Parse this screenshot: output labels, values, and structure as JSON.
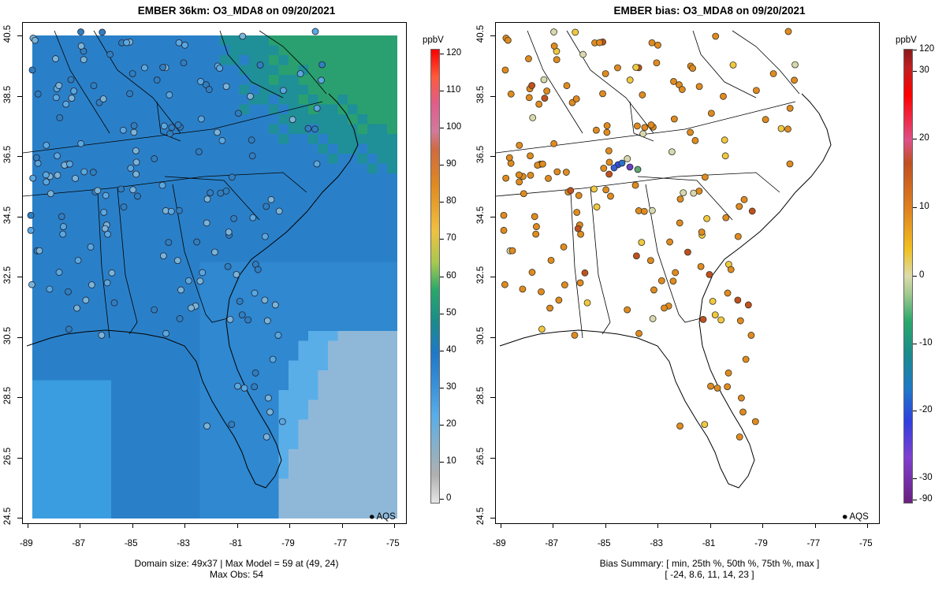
{
  "left": {
    "title": "EMBER 36km: O3_MDA8 on 09/20/2021",
    "caption_line1": "Domain size: 49x37 | Max Model = 59 at (49, 24)",
    "caption_line2": "Max Obs: 54",
    "legend_label": "AQS",
    "colorbar_unit": "ppbV",
    "colorbar_ticks": [
      "120",
      "110",
      "100",
      "90",
      "80",
      "70",
      "60",
      "50",
      "40",
      "30",
      "20",
      "10",
      "0"
    ]
  },
  "right": {
    "title": "EMBER bias: O3_MDA8 on 09/20/2021",
    "caption_line1": "Bias Summary: [ min, 25th %, 50th %, 75th %, max ]",
    "caption_line2": "[ -24,  8.6,  11,  14,  23 ]",
    "legend_label": "AQS",
    "colorbar_unit": "ppbV",
    "colorbar_ticks": [
      "120",
      "30",
      "20",
      "10",
      "0",
      "-10",
      "-20",
      "-30",
      "-90"
    ]
  },
  "axes": {
    "x_ticks": [
      "-89",
      "-87",
      "-85",
      "-83",
      "-81",
      "-79",
      "-77",
      "-75"
    ],
    "y_ticks": [
      "40.5",
      "38.5",
      "36.5",
      "34.5",
      "32.5",
      "30.5",
      "28.5",
      "26.5",
      "24.5"
    ]
  },
  "colors": {
    "scale_high": "#ff0000",
    "scale_mid_green": "#2aa86a",
    "scale_blue": "#1f78c8",
    "scale_light_blue": "#5aaee8",
    "scale_gray": "#b0b0b0"
  }
}
